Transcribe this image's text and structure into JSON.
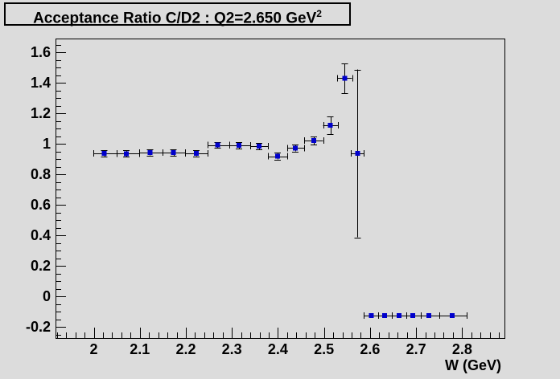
{
  "colors": {
    "canvas_bg": "#dcdcdc",
    "frame_line": "#000000",
    "text": "#000000",
    "marker_blue": "#0000cc"
  },
  "chart_data": {
    "type": "scatter",
    "title": "Acceptance Ratio C/D2 : Q2=2.650 GeV^2",
    "title_main": "Acceptance Ratio C/D2 : Q2=2.650 GeV",
    "title_superscript": "2",
    "xlabel": "W (GeV)",
    "ylabel": "",
    "xlim": [
      1.917,
      2.892
    ],
    "ylim": [
      -0.273,
      1.69
    ],
    "grid": false,
    "legend": false,
    "x_major_ticks": [
      {
        "v": 2.0,
        "label": "2"
      },
      {
        "v": 2.1,
        "label": "2.1"
      },
      {
        "v": 2.2,
        "label": "2.2"
      },
      {
        "v": 2.3,
        "label": "2.3"
      },
      {
        "v": 2.4,
        "label": "2.4"
      },
      {
        "v": 2.5,
        "label": "2.5"
      },
      {
        "v": 2.6,
        "label": "2.6"
      },
      {
        "v": 2.7,
        "label": "2.7"
      },
      {
        "v": 2.8,
        "label": "2.8"
      }
    ],
    "x_minor_step": 0.02,
    "y_major_ticks": [
      {
        "v": -0.2,
        "label": "-0.2"
      },
      {
        "v": 0.0,
        "label": "0"
      },
      {
        "v": 0.2,
        "label": "0.2"
      },
      {
        "v": 0.4,
        "label": "0.4"
      },
      {
        "v": 0.6,
        "label": "0.6"
      },
      {
        "v": 0.8,
        "label": "0.8"
      },
      {
        "v": 1.0,
        "label": "1"
      },
      {
        "v": 1.2,
        "label": "1.2"
      },
      {
        "v": 1.4,
        "label": "1.4"
      },
      {
        "v": 1.6,
        "label": "1.6"
      }
    ],
    "y_minor_step": 0.05,
    "marker": {
      "shape": "square",
      "color": "#0000cc",
      "size": 6
    },
    "points": [
      {
        "w": 2.023,
        "y": 0.937,
        "ey": 0.021,
        "wlo": 1.999,
        "whi": 2.049
      },
      {
        "w": 2.071,
        "y": 0.936,
        "ey": 0.02,
        "wlo": 2.049,
        "whi": 2.099
      },
      {
        "w": 2.122,
        "y": 0.943,
        "ey": 0.02,
        "wlo": 2.099,
        "whi": 2.149
      },
      {
        "w": 2.173,
        "y": 0.942,
        "ey": 0.02,
        "wlo": 2.149,
        "whi": 2.198
      },
      {
        "w": 2.223,
        "y": 0.938,
        "ey": 0.02,
        "wlo": 2.198,
        "whi": 2.248
      },
      {
        "w": 2.269,
        "y": 0.992,
        "ey": 0.02,
        "wlo": 2.248,
        "whi": 2.294
      },
      {
        "w": 2.315,
        "y": 0.99,
        "ey": 0.02,
        "wlo": 2.294,
        "whi": 2.34
      },
      {
        "w": 2.359,
        "y": 0.985,
        "ey": 0.022,
        "wlo": 2.34,
        "whi": 2.379
      },
      {
        "w": 2.399,
        "y": 0.919,
        "ey": 0.022,
        "wlo": 2.379,
        "whi": 2.42
      },
      {
        "w": 2.438,
        "y": 0.972,
        "ey": 0.022,
        "wlo": 2.42,
        "whi": 2.457
      },
      {
        "w": 2.478,
        "y": 1.021,
        "ey": 0.028,
        "wlo": 2.457,
        "whi": 2.498
      },
      {
        "w": 2.514,
        "y": 1.121,
        "ey": 0.056,
        "wlo": 2.498,
        "whi": 2.53
      },
      {
        "w": 2.545,
        "y": 1.43,
        "ey": 0.097,
        "wlo": 2.529,
        "whi": 2.561
      },
      {
        "w": 2.573,
        "y": 0.937,
        "ey": 0.55,
        "wlo": 2.558,
        "whi": 2.587
      },
      {
        "w": 2.603,
        "y": -0.125,
        "ey": 0,
        "wlo": 2.587,
        "whi": 2.618
      },
      {
        "w": 2.632,
        "y": -0.125,
        "ey": 0,
        "wlo": 2.618,
        "whi": 2.647
      },
      {
        "w": 2.663,
        "y": -0.125,
        "ey": 0,
        "wlo": 2.647,
        "whi": 2.679
      },
      {
        "w": 2.693,
        "y": -0.125,
        "ey": 0,
        "wlo": 2.679,
        "whi": 2.711
      },
      {
        "w": 2.728,
        "y": -0.125,
        "ey": 0,
        "wlo": 2.711,
        "whi": 2.75
      },
      {
        "w": 2.778,
        "y": -0.125,
        "ey": 0,
        "wlo": 2.75,
        "whi": 2.81
      }
    ]
  }
}
